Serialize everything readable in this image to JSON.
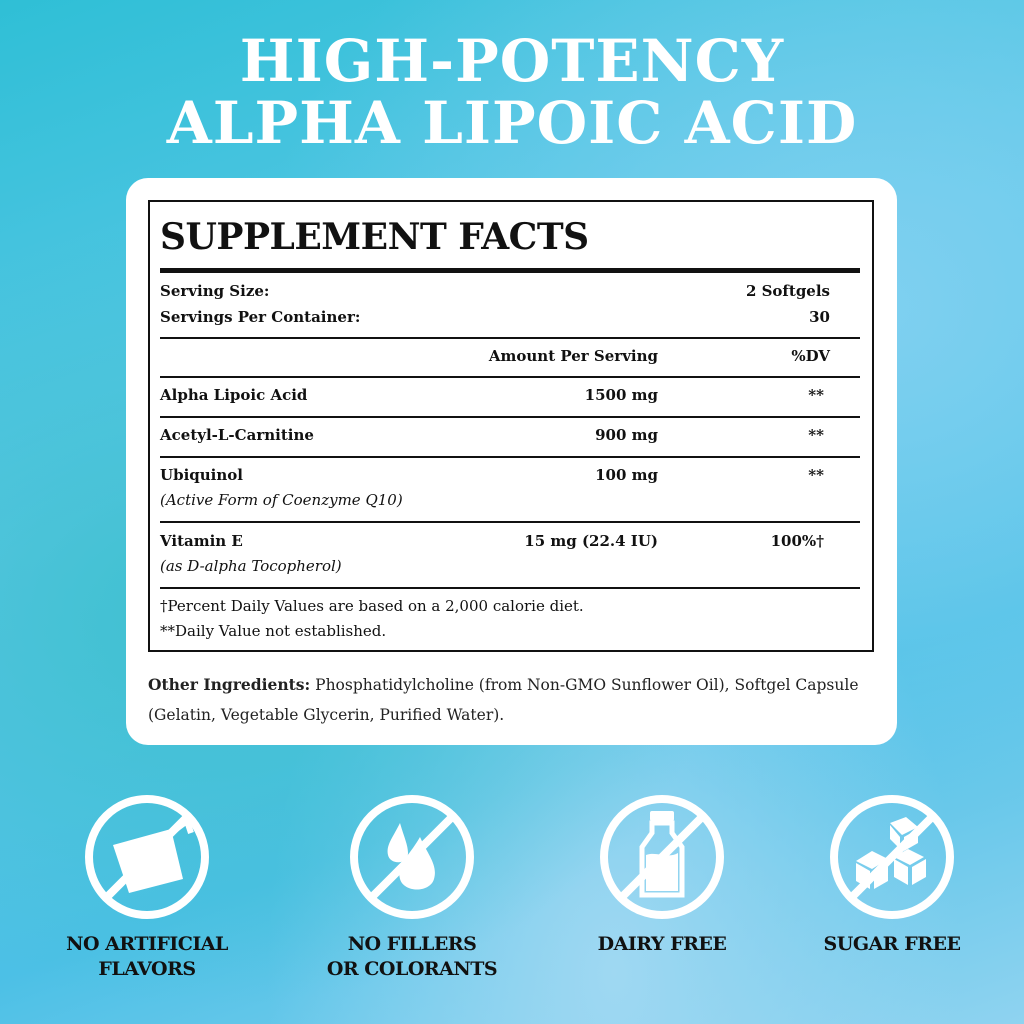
{
  "headline": {
    "line1": "HIGH-POTENCY",
    "line2": "ALPHA LIPOIC ACID"
  },
  "facts": {
    "title": "SUPPLEMENT FACTS",
    "serving_size_label": "Serving Size:",
    "serving_size_value": "2 Softgels",
    "servings_label": "Servings Per Container:",
    "servings_value": "30",
    "col_amount": "Amount Per Serving",
    "col_dv": "%DV",
    "rows": [
      {
        "name": "Alpha Lipoic Acid",
        "sub": "",
        "amount": "1500 mg",
        "dv": "**"
      },
      {
        "name": "Acetyl-L-Carnitine",
        "sub": "",
        "amount": "900 mg",
        "dv": "**"
      },
      {
        "name": "Ubiquinol",
        "sub": "(Active Form of Coenzyme Q10)",
        "amount": "100 mg",
        "dv": "**"
      },
      {
        "name": "Vitamin E",
        "sub": "(as D-alpha Tocopherol)",
        "amount": "15 mg (22.4 IU)",
        "dv": "100%†"
      }
    ],
    "footnote1": "†Percent Daily Values are based on a 2,000 calorie diet.",
    "footnote2": "**Daily Value not established."
  },
  "other": {
    "label": "Other Ingredients:",
    "text": " Phosphatidylcholine (from Non-GMO Sunflower Oil), Softgel Capsule (Gelatin, Vegetable Glycerin, Purified Water)."
  },
  "badges": [
    {
      "icon": "measuring-cup-icon",
      "line1": "NO ARTIFICIAL",
      "line2": "FLAVORS"
    },
    {
      "icon": "droplets-icon",
      "line1": "NO FILLERS",
      "line2": "OR COLORANTS"
    },
    {
      "icon": "milk-bottle-icon",
      "line1": "DAIRY FREE",
      "line2": ""
    },
    {
      "icon": "sugar-cubes-icon",
      "line1": "SUGAR FREE",
      "line2": ""
    }
  ]
}
